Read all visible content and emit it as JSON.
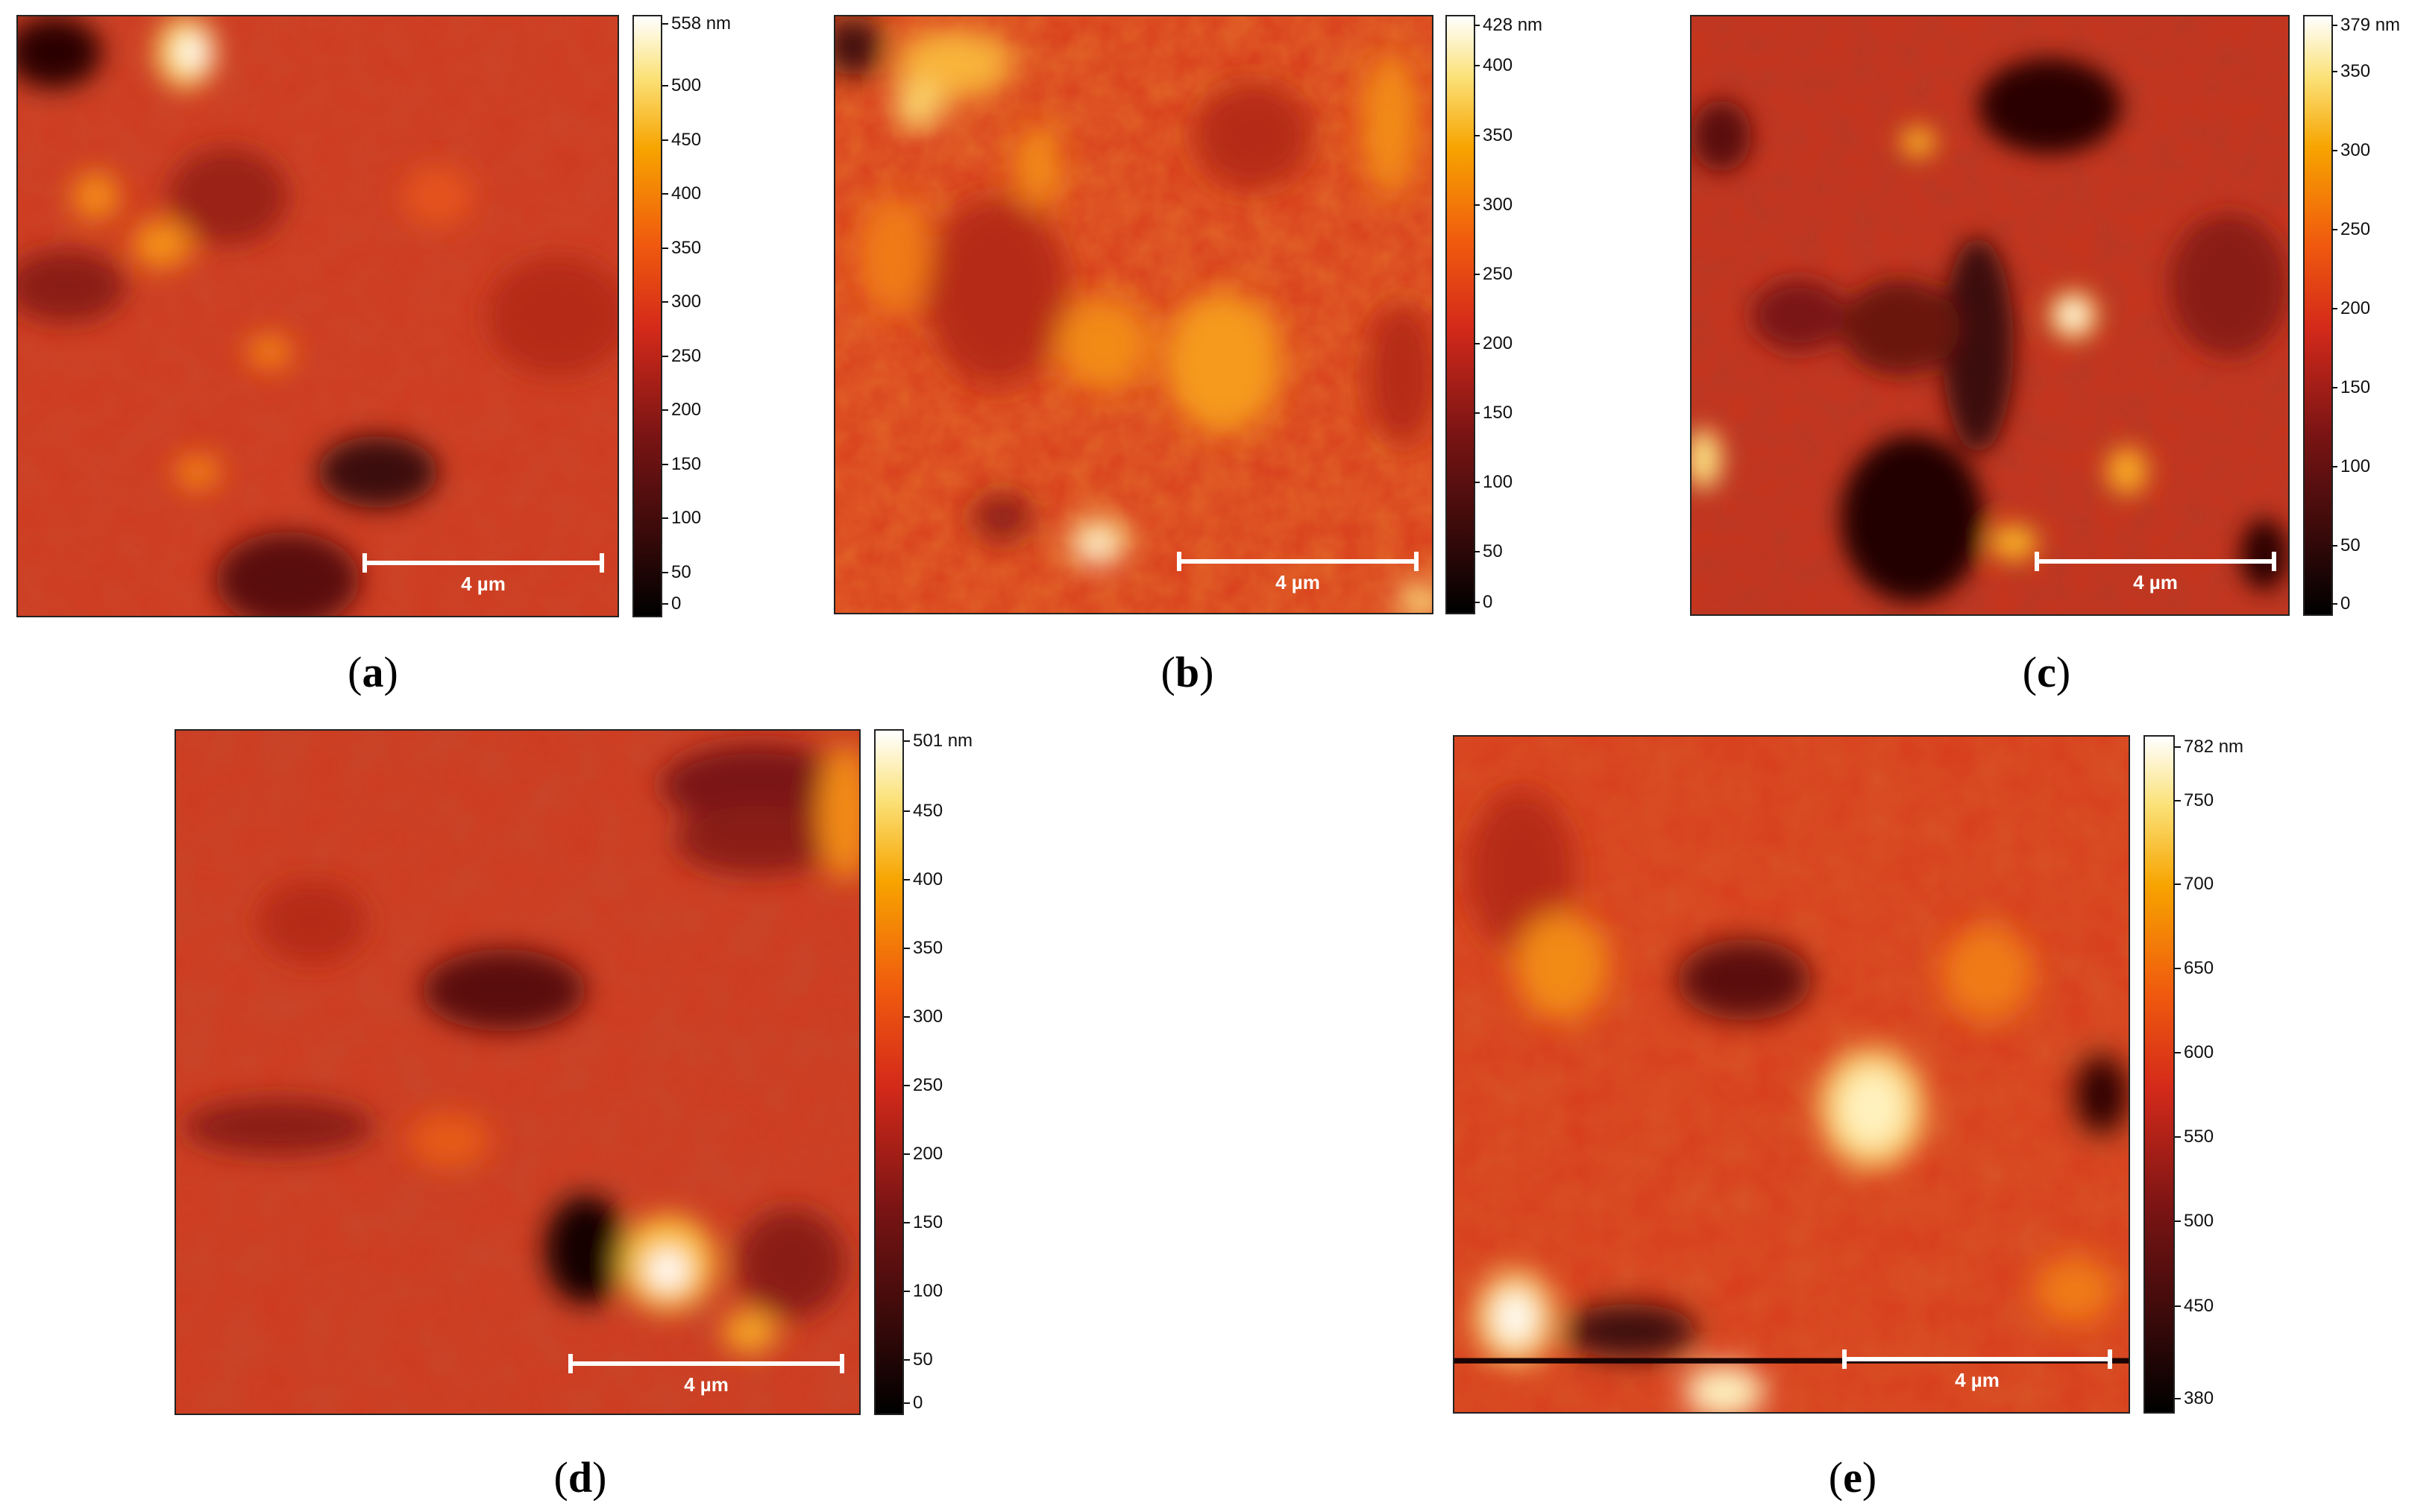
{
  "panels": [
    {
      "id": "a",
      "caption_open": "(",
      "caption_letter": "a",
      "caption_close": ")",
      "scale_label": "4 µm",
      "colorbar": {
        "max_label": "558 nm",
        "ticks": [
          "500",
          "450",
          "400",
          "350",
          "300",
          "250",
          "200",
          "150",
          "100",
          "50",
          "0"
        ]
      }
    },
    {
      "id": "b",
      "caption_open": "(",
      "caption_letter": "b",
      "caption_close": ")",
      "scale_label": "4 µm",
      "colorbar": {
        "max_label": "428 nm",
        "ticks": [
          "400",
          "350",
          "300",
          "250",
          "200",
          "150",
          "100",
          "50",
          "0"
        ]
      }
    },
    {
      "id": "c",
      "caption_open": "(",
      "caption_letter": "c",
      "caption_close": ")",
      "scale_label": "4 µm",
      "colorbar": {
        "max_label": "379 nm",
        "ticks": [
          "350",
          "300",
          "250",
          "200",
          "150",
          "100",
          "50",
          "0"
        ]
      }
    },
    {
      "id": "d",
      "caption_open": "(",
      "caption_letter": "d",
      "caption_close": ")",
      "scale_label": "4 µm",
      "colorbar": {
        "max_label": "501 nm",
        "ticks": [
          "450",
          "400",
          "350",
          "300",
          "250",
          "200",
          "150",
          "100",
          "50",
          "0"
        ]
      }
    },
    {
      "id": "e",
      "caption_open": "(",
      "caption_letter": "e",
      "caption_close": ")",
      "scale_label": "4 µm",
      "colorbar": {
        "max_label": "782 nm",
        "ticks": [
          "750",
          "700",
          "650",
          "600",
          "550",
          "500",
          "450",
          "380"
        ]
      }
    }
  ],
  "colors": {
    "base": "#d63a1f",
    "dark": "#2a0606",
    "highlight": "#fff2b0",
    "orange": "#f28a1a"
  }
}
